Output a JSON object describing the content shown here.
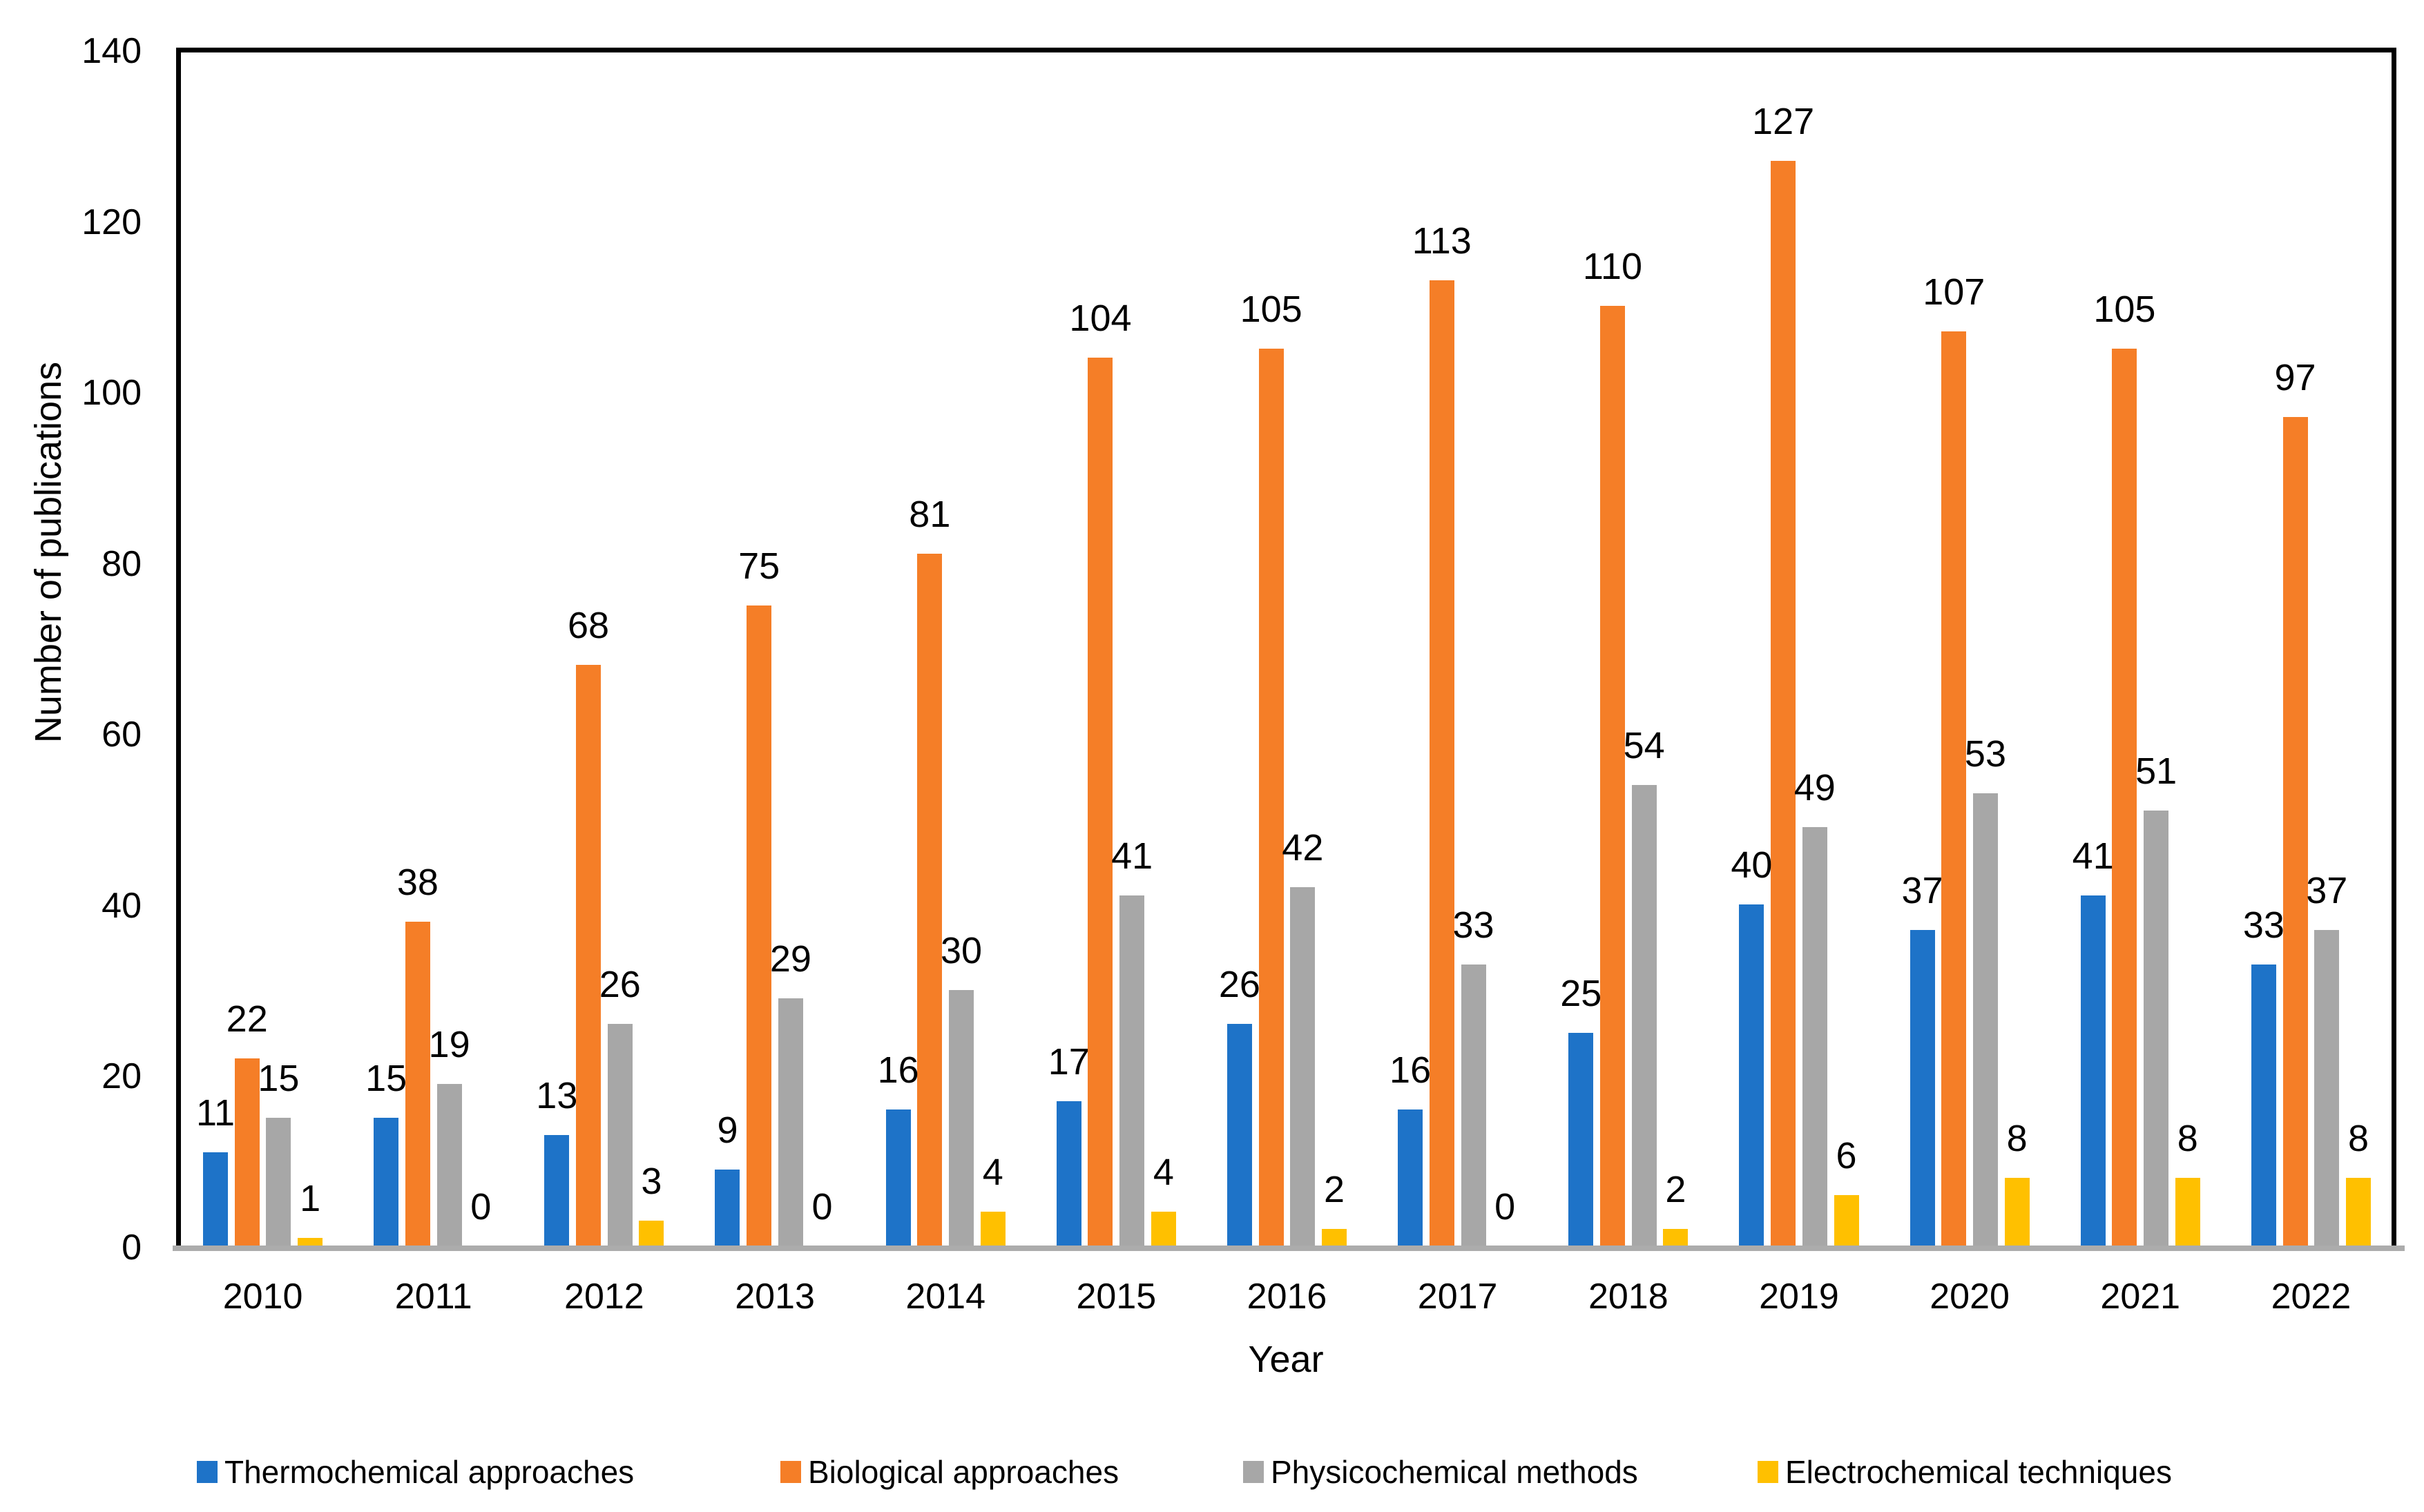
{
  "chart_data": {
    "type": "bar",
    "title": "",
    "xlabel": "Year",
    "ylabel": "Number of publications",
    "categories": [
      "2010",
      "2011",
      "2012",
      "2013",
      "2014",
      "2015",
      "2016",
      "2017",
      "2018",
      "2019",
      "2020",
      "2021",
      "2022"
    ],
    "series": [
      {
        "name": "Thermochemical approaches",
        "color": "#1E73C8",
        "values": [
          11,
          15,
          13,
          9,
          16,
          17,
          26,
          16,
          25,
          40,
          37,
          41,
          33
        ]
      },
      {
        "name": "Biological approaches",
        "color": "#F57E27",
        "values": [
          22,
          38,
          68,
          75,
          81,
          104,
          105,
          113,
          110,
          127,
          107,
          105,
          97
        ]
      },
      {
        "name": "Physicochemical methods",
        "color": "#A7A7A7",
        "values": [
          15,
          19,
          26,
          29,
          30,
          41,
          42,
          33,
          54,
          49,
          53,
          51,
          37
        ]
      },
      {
        "name": "Electrochemical techniques",
        "color": "#FFC000",
        "values": [
          1,
          0,
          3,
          0,
          4,
          4,
          2,
          0,
          2,
          6,
          8,
          8,
          8
        ]
      }
    ],
    "ylim": [
      0,
      140
    ],
    "ytick_step": 20,
    "grid": false,
    "data_labels": true,
    "legend_position": "bottom",
    "colors": {
      "plot_border": "#000000",
      "x_axis_line": "#ACACAC",
      "text": "#000000",
      "background": "#FFFFFF"
    }
  }
}
